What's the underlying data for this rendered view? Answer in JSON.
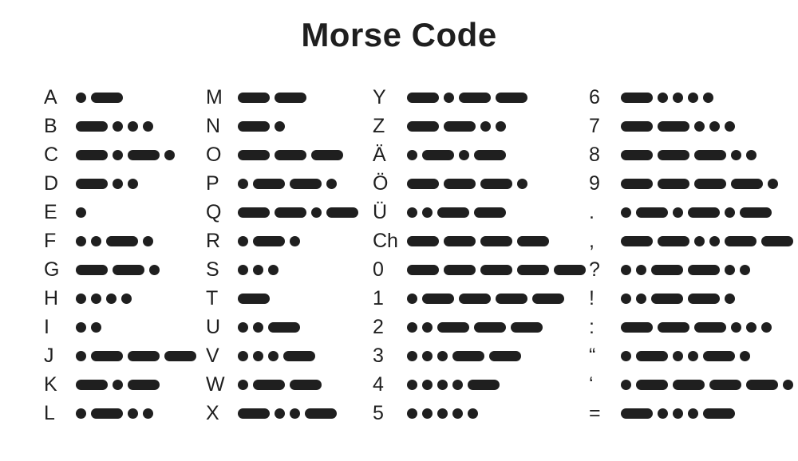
{
  "title": "Morse Code",
  "colors": {
    "ink": "#1f1f1f",
    "background": "#ffffff"
  },
  "symbols": {
    "dot_char": ".",
    "dash_char": "-"
  },
  "columns": [
    {
      "entries": [
        {
          "char": "A",
          "code": ".-"
        },
        {
          "char": "B",
          "code": "-..."
        },
        {
          "char": "C",
          "code": "-.-."
        },
        {
          "char": "D",
          "code": "-.."
        },
        {
          "char": "E",
          "code": "."
        },
        {
          "char": "F",
          "code": "..-."
        },
        {
          "char": "G",
          "code": "--."
        },
        {
          "char": "H",
          "code": "...."
        },
        {
          "char": "I",
          "code": ".."
        },
        {
          "char": "J",
          "code": ".---"
        },
        {
          "char": "K",
          "code": "-.-"
        },
        {
          "char": "L",
          "code": ".-.."
        }
      ]
    },
    {
      "entries": [
        {
          "char": "M",
          "code": "--"
        },
        {
          "char": "N",
          "code": "-."
        },
        {
          "char": "O",
          "code": "---"
        },
        {
          "char": "P",
          "code": ".--."
        },
        {
          "char": "Q",
          "code": "--.-"
        },
        {
          "char": "R",
          "code": ".-."
        },
        {
          "char": "S",
          "code": "..."
        },
        {
          "char": "T",
          "code": "-"
        },
        {
          "char": "U",
          "code": "..-"
        },
        {
          "char": "V",
          "code": "...-"
        },
        {
          "char": "W",
          "code": ".--"
        },
        {
          "char": "X",
          "code": "-..-"
        }
      ]
    },
    {
      "entries": [
        {
          "char": "Y",
          "code": "-.--"
        },
        {
          "char": "Z",
          "code": "--.."
        },
        {
          "char": "Ä",
          "code": ".-.-"
        },
        {
          "char": "Ö",
          "code": "---."
        },
        {
          "char": "Ü",
          "code": "..--"
        },
        {
          "char": "Ch",
          "code": "----"
        },
        {
          "char": "0",
          "code": "-----"
        },
        {
          "char": "1",
          "code": ".----"
        },
        {
          "char": "2",
          "code": "..---"
        },
        {
          "char": "3",
          "code": "...--"
        },
        {
          "char": "4",
          "code": "....-"
        },
        {
          "char": "5",
          "code": "....."
        }
      ]
    },
    {
      "entries": [
        {
          "char": "6",
          "code": "-...."
        },
        {
          "char": "7",
          "code": "--..."
        },
        {
          "char": "8",
          "code": "---.."
        },
        {
          "char": "9",
          "code": "----."
        },
        {
          "char": ".",
          "code": ".-.-.-"
        },
        {
          "char": ",",
          "code": "--..--"
        },
        {
          "char": "?",
          "code": "..--.."
        },
        {
          "char": "!",
          "code": "..--."
        },
        {
          "char": ":",
          "code": "---..."
        },
        {
          "char": "“",
          "code": ".-..-."
        },
        {
          "char": "‘",
          "code": ".----."
        },
        {
          "char": "=",
          "code": "-...-"
        }
      ]
    }
  ]
}
